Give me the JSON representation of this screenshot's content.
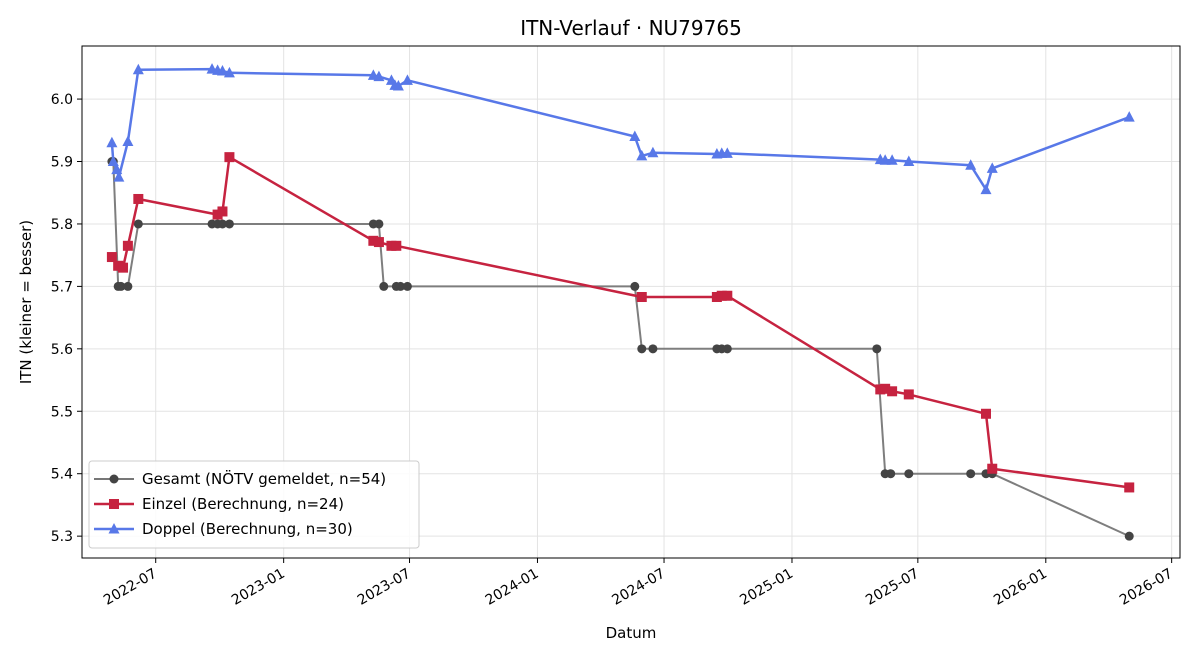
{
  "chart_data": {
    "type": "line",
    "title": "ITN-Verlauf · NU79765",
    "xlabel": "Datum",
    "ylabel": "ITN  (kleiner = besser)",
    "x_axis": "date",
    "xlim": [
      "2022-03-17",
      "2026-07-13"
    ],
    "ylim": [
      5.265,
      6.085
    ],
    "x_ticks": [
      "2022-07",
      "2023-01",
      "2023-07",
      "2024-01",
      "2024-07",
      "2025-01",
      "2025-07",
      "2026-01",
      "2026-07"
    ],
    "y_ticks": [
      5.3,
      5.4,
      5.5,
      5.6,
      5.7,
      5.8,
      5.9,
      6.0
    ],
    "grid": true,
    "legend_position": "lower-left",
    "series": [
      {
        "name": "Gesamt (NÖTV gemeldet, n=54)",
        "color": "#777777",
        "marker_color": "#444444",
        "marker": "circle",
        "points": [
          [
            "2022-04-29",
            5.9
          ],
          [
            "2022-05-01",
            5.9
          ],
          [
            "2022-05-08",
            5.7
          ],
          [
            "2022-05-12",
            5.7
          ],
          [
            "2022-05-22",
            5.7
          ],
          [
            "2022-06-06",
            5.8
          ],
          [
            "2022-09-20",
            5.8
          ],
          [
            "2022-09-28",
            5.8
          ],
          [
            "2022-10-05",
            5.8
          ],
          [
            "2022-10-15",
            5.8
          ],
          [
            "2023-05-10",
            5.8
          ],
          [
            "2023-05-18",
            5.8
          ],
          [
            "2023-05-25",
            5.7
          ],
          [
            "2023-06-12",
            5.7
          ],
          [
            "2023-06-18",
            5.7
          ],
          [
            "2023-06-28",
            5.7
          ],
          [
            "2024-05-20",
            5.7
          ],
          [
            "2024-05-30",
            5.6
          ],
          [
            "2024-06-15",
            5.6
          ],
          [
            "2024-09-15",
            5.6
          ],
          [
            "2024-09-22",
            5.6
          ],
          [
            "2024-09-30",
            5.6
          ],
          [
            "2025-05-03",
            5.6
          ],
          [
            "2025-05-15",
            5.4
          ],
          [
            "2025-05-23",
            5.4
          ],
          [
            "2025-06-18",
            5.4
          ],
          [
            "2025-09-15",
            5.4
          ],
          [
            "2025-10-07",
            5.4
          ],
          [
            "2025-10-16",
            5.4
          ],
          [
            "2026-05-01",
            5.3
          ]
        ]
      },
      {
        "name": "Einzel (Berechnung, n=24)",
        "color": "#c62340",
        "marker": "square",
        "points": [
          [
            "2022-04-29",
            5.747
          ],
          [
            "2022-05-08",
            5.733
          ],
          [
            "2022-05-15",
            5.73
          ],
          [
            "2022-05-22",
            5.765
          ],
          [
            "2022-06-06",
            5.84
          ],
          [
            "2022-09-28",
            5.815
          ],
          [
            "2022-10-05",
            5.82
          ],
          [
            "2022-10-15",
            5.907
          ],
          [
            "2023-05-10",
            5.773
          ],
          [
            "2023-05-18",
            5.771
          ],
          [
            "2023-06-05",
            5.765
          ],
          [
            "2023-06-12",
            5.765
          ],
          [
            "2024-05-30",
            5.683
          ],
          [
            "2024-09-15",
            5.683
          ],
          [
            "2024-09-22",
            5.685
          ],
          [
            "2024-09-30",
            5.685
          ],
          [
            "2025-05-08",
            5.535
          ],
          [
            "2025-05-15",
            5.536
          ],
          [
            "2025-05-25",
            5.532
          ],
          [
            "2025-06-18",
            5.527
          ],
          [
            "2025-10-07",
            5.496
          ],
          [
            "2025-10-16",
            5.408
          ],
          [
            "2026-05-01",
            5.378
          ]
        ]
      },
      {
        "name": "Doppel (Berechnung, n=30)",
        "color": "#5878e8",
        "marker": "triangle",
        "points": [
          [
            "2022-04-29",
            5.93
          ],
          [
            "2022-05-01",
            5.9
          ],
          [
            "2022-05-06",
            5.887
          ],
          [
            "2022-05-09",
            5.875
          ],
          [
            "2022-05-22",
            5.932
          ],
          [
            "2022-06-06",
            6.047
          ],
          [
            "2022-09-20",
            6.048
          ],
          [
            "2022-09-28",
            6.046
          ],
          [
            "2022-10-05",
            6.045
          ],
          [
            "2022-10-15",
            6.042
          ],
          [
            "2023-05-10",
            6.038
          ],
          [
            "2023-05-18",
            6.036
          ],
          [
            "2023-06-05",
            6.03
          ],
          [
            "2023-06-10",
            6.022
          ],
          [
            "2023-06-15",
            6.021
          ],
          [
            "2023-06-28",
            6.03
          ],
          [
            "2024-05-20",
            5.94
          ],
          [
            "2024-05-30",
            5.909
          ],
          [
            "2024-06-15",
            5.914
          ],
          [
            "2024-09-15",
            5.912
          ],
          [
            "2024-09-22",
            5.913
          ],
          [
            "2024-09-30",
            5.913
          ],
          [
            "2025-05-08",
            5.903
          ],
          [
            "2025-05-15",
            5.902
          ],
          [
            "2025-05-25",
            5.902
          ],
          [
            "2025-06-18",
            5.9
          ],
          [
            "2025-09-15",
            5.894
          ],
          [
            "2025-10-07",
            5.855
          ],
          [
            "2025-10-16",
            5.889
          ],
          [
            "2026-05-01",
            5.971
          ]
        ]
      }
    ]
  }
}
